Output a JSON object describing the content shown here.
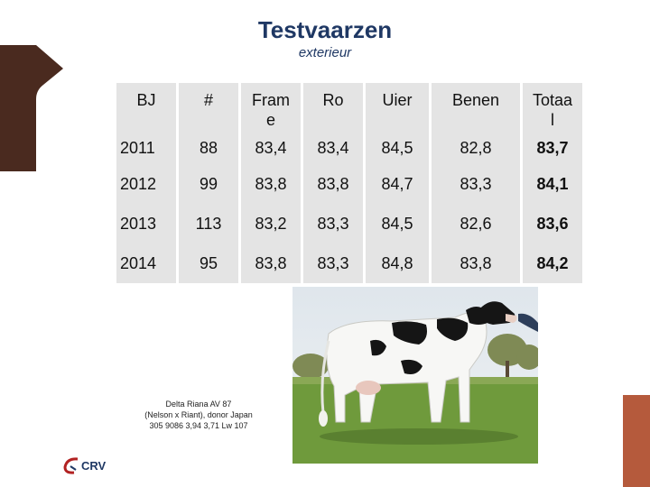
{
  "slide": {
    "title": "Testvaarzen",
    "subtitle": "exterieur"
  },
  "table": {
    "headers": [
      "BJ",
      "#",
      "Fram\ne",
      "Ro",
      "Uier",
      "Benen",
      "Totaa\nl"
    ],
    "rows": [
      [
        "2011",
        "88",
        "83,4",
        "83,4",
        "84,5",
        "82,8",
        "83,7"
      ],
      [
        "2012",
        "99",
        "83,8",
        "83,8",
        "84,7",
        "83,3",
        "84,1"
      ],
      [
        "2013",
        "113",
        "83,2",
        "83,3",
        "84,5",
        "82,6",
        "83,6"
      ],
      [
        "2014",
        "95",
        "83,8",
        "83,3",
        "84,8",
        "83,8",
        "84,2"
      ]
    ]
  },
  "caption": {
    "line1": "Delta Riana AV 87",
    "line2": "(Nelson x Riant), donor Japan",
    "line3": "305 9086 3,94 3,71 Lw 107"
  },
  "logo": {
    "text": "CRV"
  },
  "colors": {
    "title": "#1f3864",
    "accent_brown": "#4a2a1f",
    "accent_rust": "#b55a3c",
    "table_fill": "#e4e4e4"
  }
}
